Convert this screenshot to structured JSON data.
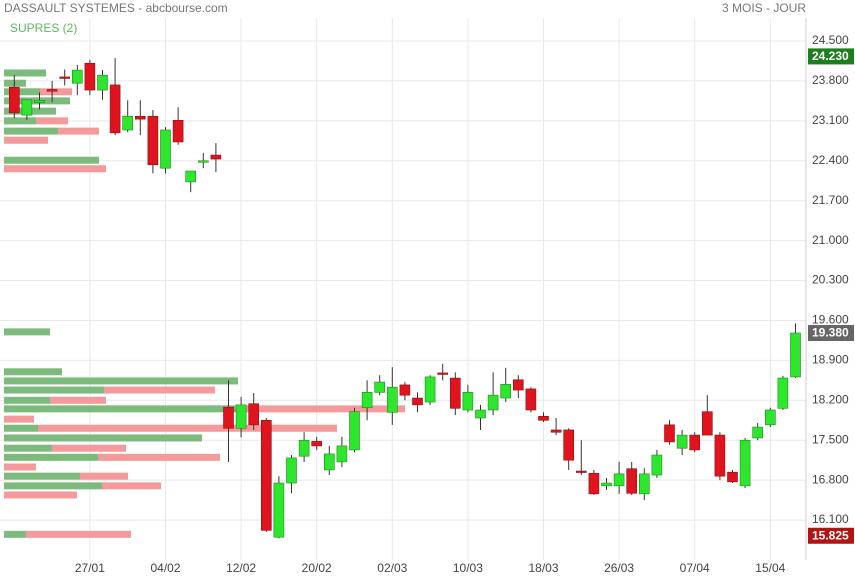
{
  "chart_data": {
    "type": "candlestick",
    "title": "DASSAULT SYSTEMES - abcbourse.com",
    "period": "3 MOIS - JOUR",
    "indicator_label": "SUPRES (2)",
    "categories": [
      null,
      null,
      null,
      null,
      null,
      null,
      "27/01",
      null,
      null,
      null,
      null,
      null,
      "04/02",
      null,
      null,
      null,
      null,
      null,
      "12/02",
      null,
      null,
      null,
      null,
      null,
      "20/02",
      null,
      null,
      null,
      null,
      null,
      "02/03",
      null,
      null,
      null,
      null,
      null,
      "10/03",
      null,
      null,
      null,
      null,
      null,
      "18/03",
      null,
      null,
      null,
      null,
      null,
      "26/03",
      null,
      null,
      null,
      null,
      null,
      "07/04",
      null,
      null,
      null,
      null,
      null,
      "15/04",
      null,
      null
    ],
    "open": [
      23.69,
      23.2,
      23.42,
      23.65,
      23.87,
      23.76,
      24.11,
      23.64,
      23.73,
      22.94,
      23.18,
      23.18,
      22.27,
      23.11,
      22.03,
      22.39,
      22.5,
      18.08,
      17.71,
      18.14,
      17.85,
      15.8,
      16.75,
      17.22,
      17.48,
      16.98,
      17.12,
      17.33,
      18.07,
      18.34,
      17.99,
      18.47,
      18.24,
      18.17,
      18.68,
      18.59,
      18.03,
      17.89,
      18.03,
      18.24,
      18.56,
      18.4,
      17.92,
      17.68,
      17.68,
      16.96,
      16.92,
      16.7,
      16.7,
      17.0,
      16.56,
      16.89,
      17.77,
      17.36,
      17.59,
      18.0,
      17.59,
      16.94,
      16.7,
      17.54,
      17.77,
      18.06,
      18.61
    ],
    "high": [
      23.9,
      23.47,
      23.6,
      23.8,
      24.0,
      24.08,
      24.17,
      23.99,
      24.2,
      23.46,
      23.46,
      23.29,
      22.99,
      23.34,
      22.22,
      22.54,
      22.71,
      18.55,
      18.26,
      18.33,
      17.89,
      16.87,
      17.24,
      17.64,
      17.56,
      17.4,
      17.56,
      18.07,
      18.55,
      18.64,
      18.78,
      18.52,
      18.34,
      18.64,
      18.84,
      18.69,
      18.47,
      18.12,
      18.69,
      18.77,
      18.64,
      18.43,
      17.99,
      17.89,
      17.71,
      17.5,
      16.98,
      16.84,
      17.12,
      17.12,
      17.01,
      17.33,
      17.85,
      17.68,
      17.64,
      18.29,
      17.64,
      16.98,
      17.54,
      17.8,
      18.07,
      18.63,
      19.55
    ],
    "low": [
      23.15,
      23.12,
      23.3,
      23.43,
      23.72,
      23.55,
      23.55,
      23.47,
      22.85,
      22.9,
      22.85,
      22.18,
      22.18,
      22.68,
      21.85,
      22.27,
      22.2,
      17.12,
      17.55,
      17.68,
      15.89,
      15.78,
      16.57,
      17.12,
      17.33,
      16.89,
      17.03,
      17.29,
      17.85,
      18.29,
      17.77,
      18.2,
      17.99,
      18.12,
      18.55,
      17.94,
      17.99,
      17.68,
      17.94,
      18.17,
      18.24,
      17.99,
      17.82,
      17.59,
      16.98,
      16.89,
      16.54,
      16.63,
      16.56,
      16.54,
      16.45,
      16.84,
      17.42,
      17.24,
      17.29,
      17.59,
      16.8,
      16.75,
      16.66,
      17.5,
      17.73,
      18.03,
      18.59
    ],
    "close": [
      23.24,
      23.47,
      23.46,
      23.62,
      23.85,
      23.99,
      23.64,
      23.9,
      22.89,
      23.18,
      23.13,
      22.33,
      22.94,
      22.73,
      22.22,
      22.4,
      22.43,
      17.71,
      18.12,
      17.77,
      15.92,
      16.75,
      17.19,
      17.5,
      17.4,
      17.26,
      17.4,
      18.0,
      18.34,
      18.52,
      18.43,
      18.29,
      18.12,
      18.61,
      18.66,
      18.06,
      18.34,
      18.03,
      18.29,
      18.48,
      18.38,
      18.03,
      17.85,
      17.64,
      17.15,
      16.94,
      16.56,
      16.75,
      16.91,
      16.57,
      16.91,
      17.24,
      17.47,
      17.59,
      17.33,
      17.59,
      16.87,
      16.77,
      17.5,
      17.73,
      18.03,
      18.59,
      19.38
    ],
    "up_color": "#2ee62e",
    "down_color": "#e0141e",
    "ylim": [
      15.4,
      24.9
    ],
    "yticks": [
      {
        "value": 16.1,
        "label": "16.100"
      },
      {
        "value": 16.8,
        "label": "16.800"
      },
      {
        "value": 17.5,
        "label": "17.500"
      },
      {
        "value": 18.2,
        "label": "18.200"
      },
      {
        "value": 18.9,
        "label": "18.900"
      },
      {
        "value": 19.6,
        "label": "19.600"
      },
      {
        "value": 20.3,
        "label": "20.300"
      },
      {
        "value": 21,
        "label": "21.000"
      },
      {
        "value": 21.7,
        "label": "21.700"
      },
      {
        "value": 22.4,
        "label": "22.400"
      },
      {
        "value": 23.1,
        "label": "23.100"
      },
      {
        "value": 23.8,
        "label": "23.800"
      },
      {
        "value": 24.5,
        "label": "24.500"
      }
    ],
    "grid": true,
    "price_markers": [
      {
        "value": 24.23,
        "label": "24.230",
        "color": "#1e7d1e"
      },
      {
        "value": 19.38,
        "label": "19.380",
        "color": "#666666"
      },
      {
        "value": 15.825,
        "label": "15.825",
        "color": "#b01414"
      }
    ],
    "volume_profile": {
      "prices": [
        23.94,
        23.76,
        23.61,
        23.45,
        23.27,
        23.1,
        22.92,
        22.76,
        22.41,
        22.26,
        19.4,
        18.7,
        18.54,
        18.38,
        18.2,
        18.05,
        17.87,
        17.71,
        17.54,
        17.36,
        17.2,
        17.03,
        16.87,
        16.7,
        16.54,
        15.85
      ],
      "buy": [
        42,
        22,
        36,
        66,
        52,
        32,
        54,
        0,
        95,
        0,
        46,
        58,
        234,
        100,
        46,
        234,
        0,
        34,
        198,
        48,
        94,
        0,
        76,
        98,
        0,
        22
      ],
      "sell": [
        0,
        0,
        32,
        0,
        0,
        32,
        41,
        44,
        0,
        102,
        0,
        0,
        0,
        111,
        56,
        167,
        30,
        299,
        0,
        74,
        122,
        32,
        48,
        59,
        73,
        105
      ],
      "buy_color": "#7dbb7d",
      "sell_color": "#f49a9a",
      "xlim": [
        0,
        800
      ]
    }
  }
}
